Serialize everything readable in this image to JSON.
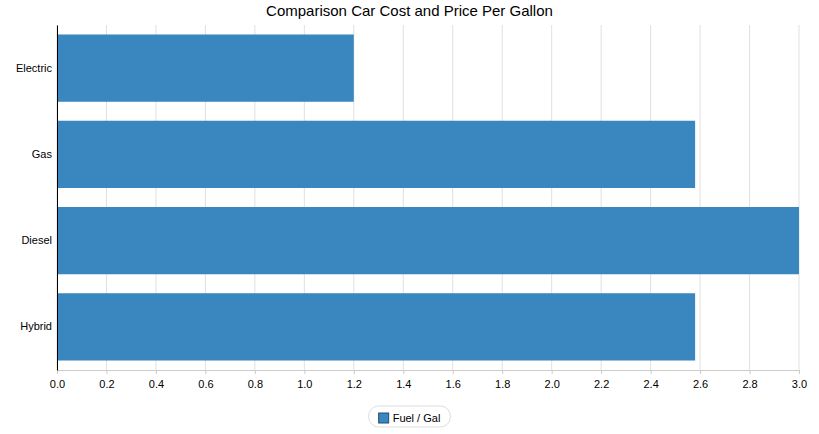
{
  "chart_data": {
    "type": "bar",
    "title": "Comparison Car Cost and Price Per Gallon",
    "orientation": "horizontal",
    "categories": [
      "Electric",
      "Gas",
      "Diesel",
      "Hybrid"
    ],
    "series": [
      {
        "name": "Fuel / Gal",
        "color": "#3a87c0",
        "values": [
          1.2,
          2.58,
          3.0,
          2.58
        ]
      }
    ],
    "xlim": [
      0,
      3.0
    ],
    "xticks": [
      {
        "value": 0,
        "label": "0.0"
      },
      0.2,
      0.4,
      0.6,
      0.8,
      {
        "value": 1,
        "label": "1.0"
      },
      1.2,
      1.4,
      1.6,
      1.8,
      {
        "value": 2,
        "label": "2.0"
      },
      2.2,
      2.4,
      2.6,
      2.8,
      {
        "value": 3,
        "label": "3.0"
      }
    ],
    "grid": true,
    "legend": "bottom"
  }
}
